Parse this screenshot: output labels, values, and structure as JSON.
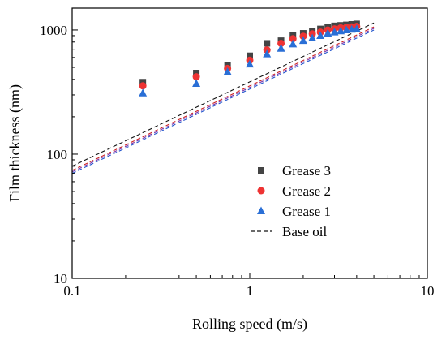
{
  "chart_data": {
    "type": "scatter",
    "title": "",
    "xlabel": "Rolling speed (m/s)",
    "ylabel": "Film thickness (nm)",
    "xscale": "log",
    "yscale": "log",
    "xlim": [
      0.1,
      10
    ],
    "ylim": [
      10,
      1500
    ],
    "xticks": [
      0.1,
      1,
      10
    ],
    "xtick_labels": [
      "0.1",
      "1",
      "10"
    ],
    "yticks": [
      10,
      100,
      1000
    ],
    "ytick_labels": [
      "10",
      "100",
      "1000"
    ],
    "grid": false,
    "legend_position": "center-right",
    "series": [
      {
        "name": "Grease 3",
        "marker": "square",
        "color": "#444444",
        "x": [
          0.25,
          0.5,
          0.75,
          1.0,
          1.25,
          1.5,
          1.75,
          2.0,
          2.25,
          2.5,
          2.75,
          3.0,
          3.25,
          3.5,
          3.75,
          4.0
        ],
        "y": [
          380,
          450,
          520,
          620,
          780,
          820,
          900,
          940,
          980,
          1020,
          1060,
          1080,
          1090,
          1100,
          1110,
          1120
        ]
      },
      {
        "name": "Grease 2",
        "marker": "circle",
        "color": "#ee3333",
        "x": [
          0.25,
          0.5,
          0.75,
          1.0,
          1.25,
          1.5,
          1.75,
          2.0,
          2.25,
          2.5,
          2.75,
          3.0,
          3.25,
          3.5,
          3.75,
          4.0
        ],
        "y": [
          355,
          420,
          490,
          570,
          690,
          780,
          850,
          890,
          930,
          960,
          1000,
          1020,
          1040,
          1050,
          1060,
          1070
        ]
      },
      {
        "name": "Grease 1",
        "marker": "triangle",
        "color": "#2a6fd6",
        "x": [
          0.25,
          0.5,
          0.75,
          1.0,
          1.25,
          1.5,
          1.75,
          2.0,
          2.25,
          2.5,
          2.75,
          3.0,
          3.25,
          3.5,
          3.75,
          4.0
        ],
        "y": [
          310,
          370,
          460,
          530,
          640,
          710,
          770,
          820,
          860,
          900,
          940,
          960,
          980,
          1000,
          1010,
          1020
        ]
      }
    ],
    "lines": [
      {
        "name": "Base oil",
        "style": "dashed",
        "color": "#111111",
        "x": [
          0.1,
          5
        ],
        "y": [
          80,
          1140
        ]
      },
      {
        "name": "",
        "style": "dashed",
        "color": "#cc2222",
        "x": [
          0.1,
          5
        ],
        "y": [
          74,
          1060
        ]
      },
      {
        "name": "",
        "style": "dashed",
        "color": "#7733aa",
        "x": [
          0.1,
          5
        ],
        "y": [
          72,
          1030
        ]
      },
      {
        "name": "",
        "style": "dashed",
        "color": "#2255cc",
        "x": [
          0.1,
          5
        ],
        "y": [
          70,
          1000
        ]
      }
    ],
    "legend": [
      {
        "label": "Grease 3",
        "marker": "square",
        "color": "#444444"
      },
      {
        "label": "Grease 2",
        "marker": "circle",
        "color": "#ee3333"
      },
      {
        "label": "Grease 1",
        "marker": "triangle",
        "color": "#2a6fd6"
      },
      {
        "label": "Base oil",
        "marker": "dashed-line",
        "color": "#111111"
      }
    ]
  }
}
